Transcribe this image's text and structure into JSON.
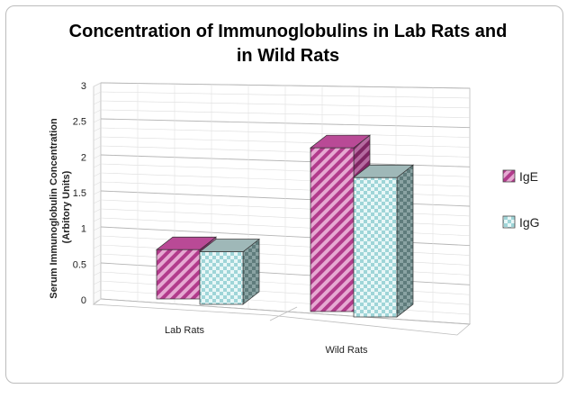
{
  "chart_data": {
    "type": "bar",
    "title_lines": [
      "Concentration of Immunoglobulins in Lab Rats and",
      "in Wild Rats"
    ],
    "ylabel_lines": [
      "Serum Immunoglobulin Concentration",
      "(Arbitory Units)"
    ],
    "xlabel": "",
    "categories": [
      "Lab Rats",
      "Wild Rats"
    ],
    "series": [
      {
        "name": "IgE",
        "values": [
          0.75,
          2.35
        ],
        "color": "#c8409a"
      },
      {
        "name": "IgG",
        "values": [
          0.8,
          2.0
        ],
        "color": "#8fd8dc"
      }
    ],
    "ylim": [
      0,
      3
    ],
    "yticks": [
      "0",
      "0.5",
      "1",
      "1.5",
      "2",
      "2.5",
      "3"
    ],
    "grid": true,
    "legend_position": "right",
    "style": "3d-clustered-column"
  }
}
